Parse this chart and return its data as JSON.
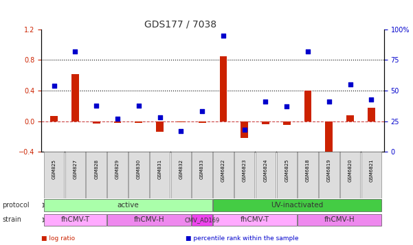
{
  "title": "GDS177 / 7038",
  "samples": [
    "GSM825",
    "GSM827",
    "GSM828",
    "GSM829",
    "GSM830",
    "GSM831",
    "GSM832",
    "GSM833",
    "GSM6822",
    "GSM6823",
    "GSM6824",
    "GSM6825",
    "GSM6818",
    "GSM6819",
    "GSM6820",
    "GSM6821"
  ],
  "log_ratio": [
    0.07,
    0.62,
    -0.03,
    -0.02,
    -0.02,
    -0.14,
    -0.01,
    -0.02,
    0.85,
    -0.22,
    -0.04,
    -0.05,
    0.4,
    -0.48,
    0.08,
    0.18
  ],
  "pct_rank": [
    0.54,
    0.82,
    0.38,
    0.27,
    0.38,
    0.28,
    0.17,
    0.33,
    0.95,
    0.18,
    0.41,
    0.37,
    0.82,
    0.41,
    0.55,
    0.43
  ],
  "bar_color": "#cc2200",
  "dot_color": "#0000cc",
  "ylim_left": [
    -0.4,
    1.2
  ],
  "ylim_right": [
    0,
    100
  ],
  "yticks_left": [
    -0.4,
    0.0,
    0.4,
    0.8,
    1.2
  ],
  "yticks_right": [
    0,
    25,
    50,
    75,
    100
  ],
  "ytick_labels_right": [
    "0",
    "25",
    "50",
    "75",
    "100%"
  ],
  "hline_y": [
    0.0,
    0.4,
    0.8
  ],
  "hline_styles": [
    "--",
    ":",
    ":"
  ],
  "hline_colors": [
    "#cc4444",
    "#000000",
    "#000000"
  ],
  "protocol_groups": [
    {
      "label": "active",
      "start": 0,
      "end": 7,
      "color": "#aaffaa"
    },
    {
      "label": "UV-inactivated",
      "start": 8,
      "end": 15,
      "color": "#44cc44"
    }
  ],
  "strain_groups": [
    {
      "label": "fhCMV-T",
      "start": 0,
      "end": 2,
      "color": "#ffaaff"
    },
    {
      "label": "fhCMV-H",
      "start": 3,
      "end": 6,
      "color": "#ee88ee"
    },
    {
      "label": "CMV_AD169",
      "start": 7,
      "end": 7,
      "color": "#ee44ee"
    },
    {
      "label": "fhCMV-T",
      "start": 8,
      "end": 11,
      "color": "#ffaaff"
    },
    {
      "label": "fhCMV-H",
      "start": 12,
      "end": 15,
      "color": "#ee88ee"
    }
  ],
  "legend_items": [
    {
      "label": "log ratio",
      "color": "#cc2200"
    },
    {
      "label": "percentile rank within the sample",
      "color": "#0000cc"
    }
  ]
}
